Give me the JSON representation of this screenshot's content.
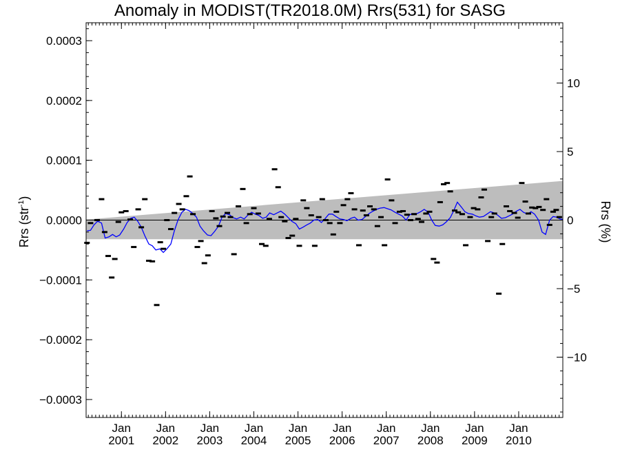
{
  "chart_data": {
    "type": "scatter",
    "title": "Anomaly in MODIST(TR2018.0M) Rrs(531) for SASG",
    "ylabel_left": "Rrs (str",
    "ylabel_left_sup": "-1",
    "ylabel_left_tail": ")",
    "ylabel_right": "Rrs (%)",
    "xlim": [
      2000.2,
      2011.0
    ],
    "ylim": [
      -0.00033,
      0.00033
    ],
    "y2lim": [
      -14.4,
      14.4
    ],
    "left_ticks": [
      {
        "v": 0.0003,
        "label": "0.0003"
      },
      {
        "v": 0.0002,
        "label": "0.0002"
      },
      {
        "v": 0.0001,
        "label": "0.0001"
      },
      {
        "v": 0.0,
        "label": "0.0000"
      },
      {
        "v": -0.0001,
        "label": "−0.0001"
      },
      {
        "v": -0.0002,
        "label": "−0.0002"
      },
      {
        "v": -0.0003,
        "label": "−0.0003"
      }
    ],
    "right_ticks": [
      {
        "v": 10,
        "label": "10"
      },
      {
        "v": 5,
        "label": "5"
      },
      {
        "v": 0,
        "label": "0"
      },
      {
        "v": -5,
        "label": "−5"
      },
      {
        "v": -10,
        "label": "−10"
      }
    ],
    "x_ticks": [
      {
        "v": 2001.0,
        "month": "Jan",
        "year": "2001"
      },
      {
        "v": 2002.0,
        "month": "Jan",
        "year": "2002"
      },
      {
        "v": 2003.0,
        "month": "Jan",
        "year": "2003"
      },
      {
        "v": 2004.0,
        "month": "Jan",
        "year": "2004"
      },
      {
        "v": 2005.0,
        "month": "Jan",
        "year": "2005"
      },
      {
        "v": 2006.0,
        "month": "Jan",
        "year": "2006"
      },
      {
        "v": 2007.0,
        "month": "Jan",
        "year": "2007"
      },
      {
        "v": 2008.0,
        "month": "Jan",
        "year": "2008"
      },
      {
        "v": 2009.0,
        "month": "Jan",
        "year": "2009"
      },
      {
        "v": 2010.0,
        "month": "Jan",
        "year": "2010"
      }
    ],
    "band": {
      "x": [
        2000.2,
        2011.0
      ],
      "upper": [
        1e-06,
        6.55e-05
      ],
      "lower": [
        -3.2e-05,
        -3.2e-05
      ],
      "color": "#bdbdbd"
    },
    "zero_line": 0.0,
    "series": [
      {
        "kind": "points",
        "color": "#000000",
        "points": [
          [
            2000.22,
            -3.8e-05
          ],
          [
            2000.3,
            -5e-06
          ],
          [
            2000.45,
            0.0
          ],
          [
            2000.55,
            3.5e-05
          ],
          [
            2000.62,
            -2e-05
          ],
          [
            2000.7,
            -6e-05
          ],
          [
            2000.78,
            -9.6e-05
          ],
          [
            2000.85,
            -6.5e-05
          ],
          [
            2000.93,
            -3e-06
          ],
          [
            2001.0,
            1.3e-05
          ],
          [
            2001.1,
            1.5e-05
          ],
          [
            2001.2,
            1e-06
          ],
          [
            2001.28,
            -4.5e-05
          ],
          [
            2001.38,
            1.8e-05
          ],
          [
            2001.45,
            -1.2e-05
          ],
          [
            2001.53,
            3.5e-05
          ],
          [
            2001.62,
            -6.8e-05
          ],
          [
            2001.7,
            -6.9e-05
          ],
          [
            2001.8,
            -0.000142
          ],
          [
            2001.88,
            -3.7e-05
          ],
          [
            2001.95,
            -4.8e-05
          ],
          [
            2002.03,
            0.0
          ],
          [
            2002.12,
            -1.5e-05
          ],
          [
            2002.2,
            1.2e-05
          ],
          [
            2002.3,
            2.7e-05
          ],
          [
            2002.38,
            1.8e-05
          ],
          [
            2002.47,
            4e-05
          ],
          [
            2002.55,
            7.3e-05
          ],
          [
            2002.62,
            1e-05
          ],
          [
            2002.72,
            -4.5e-05
          ],
          [
            2002.8,
            -3.5e-05
          ],
          [
            2002.88,
            -7.2e-05
          ],
          [
            2002.96,
            -5.9e-05
          ],
          [
            2003.05,
            1.5e-05
          ],
          [
            2003.14,
            3e-06
          ],
          [
            2003.22,
            -1e-05
          ],
          [
            2003.3,
            6e-06
          ],
          [
            2003.4,
            1.2e-05
          ],
          [
            2003.47,
            5e-06
          ],
          [
            2003.55,
            -5.7e-05
          ],
          [
            2003.65,
            2.3e-05
          ],
          [
            2003.75,
            5.2e-05
          ],
          [
            2003.83,
            -5e-06
          ],
          [
            2003.91,
            1e-05
          ],
          [
            2004.0,
            2e-05
          ],
          [
            2004.1,
            1.1e-05
          ],
          [
            2004.18,
            -4e-05
          ],
          [
            2004.27,
            -4.3e-05
          ],
          [
            2004.35,
            2e-06
          ],
          [
            2004.47,
            8.5e-05
          ],
          [
            2004.55,
            5.5e-05
          ],
          [
            2004.62,
            5e-06
          ],
          [
            2004.7,
            -2e-06
          ],
          [
            2004.78,
            -3e-05
          ],
          [
            2004.87,
            -2.6e-05
          ],
          [
            2004.95,
            2e-06
          ],
          [
            2005.03,
            -4.3e-05
          ],
          [
            2005.12,
            3.3e-05
          ],
          [
            2005.2,
            2e-05
          ],
          [
            2005.3,
            8e-06
          ],
          [
            2005.38,
            -4.3e-05
          ],
          [
            2005.47,
            5e-06
          ],
          [
            2005.55,
            3.5e-05
          ],
          [
            2005.63,
            0.0
          ],
          [
            2005.72,
            -5e-06
          ],
          [
            2005.8,
            -2.4e-05
          ],
          [
            2005.87,
            1.4e-05
          ],
          [
            2005.95,
            -5e-06
          ],
          [
            2006.03,
            2.5e-05
          ],
          [
            2006.12,
            3.5e-05
          ],
          [
            2006.2,
            4.5e-05
          ],
          [
            2006.28,
            1.8e-05
          ],
          [
            2006.38,
            -4.2e-05
          ],
          [
            2006.47,
            1.6e-05
          ],
          [
            2006.55,
            8e-06
          ],
          [
            2006.63,
            2.3e-05
          ],
          [
            2006.72,
            1.8e-05
          ],
          [
            2006.8,
            -1e-05
          ],
          [
            2006.88,
            5e-06
          ],
          [
            2006.96,
            -4.2e-05
          ],
          [
            2007.03,
            6.8e-05
          ],
          [
            2007.12,
            3.3e-05
          ],
          [
            2007.2,
            -5e-06
          ],
          [
            2007.3,
            1.4e-05
          ],
          [
            2007.38,
            1.5e-05
          ],
          [
            2007.47,
            9e-06
          ],
          [
            2007.55,
            0.0
          ],
          [
            2007.63,
            1e-05
          ],
          [
            2007.72,
            2e-06
          ],
          [
            2007.8,
            -3e-06
          ],
          [
            2007.9,
            1.1e-05
          ],
          [
            2007.98,
            1.4e-05
          ],
          [
            2008.07,
            -6.5e-05
          ],
          [
            2008.15,
            -7.1e-05
          ],
          [
            2008.22,
            3e-05
          ],
          [
            2008.3,
            6e-05
          ],
          [
            2008.38,
            6.2e-05
          ],
          [
            2008.45,
            4.8e-05
          ],
          [
            2008.55,
            1.6e-05
          ],
          [
            2008.63,
            1.3e-05
          ],
          [
            2008.72,
            1e-05
          ],
          [
            2008.8,
            -4.2e-05
          ],
          [
            2008.9,
            5e-06
          ],
          [
            2008.98,
            2e-05
          ],
          [
            2009.07,
            1.8e-05
          ],
          [
            2009.15,
            3.8e-05
          ],
          [
            2009.22,
            5.1e-05
          ],
          [
            2009.3,
            -3.5e-05
          ],
          [
            2009.38,
            5e-06
          ],
          [
            2009.45,
            1.1e-05
          ],
          [
            2009.55,
            -0.000123
          ],
          [
            2009.63,
            -4e-05
          ],
          [
            2009.72,
            2.3e-05
          ],
          [
            2009.8,
            1.5e-05
          ],
          [
            2009.9,
            1.2e-05
          ],
          [
            2009.98,
            4e-06
          ],
          [
            2010.07,
            6.2e-05
          ],
          [
            2010.15,
            3.1e-05
          ],
          [
            2010.22,
            1.1e-05
          ],
          [
            2010.3,
            2.1e-05
          ],
          [
            2010.38,
            2e-05
          ],
          [
            2010.46,
            2.2e-05
          ],
          [
            2010.55,
            1.7e-05
          ],
          [
            2010.63,
            3.5e-05
          ],
          [
            2010.7,
            -8e-06
          ],
          [
            2010.78,
            1.4e-05
          ],
          [
            2010.85,
            1.7e-05
          ],
          [
            2010.92,
            5e-06
          ]
        ]
      },
      {
        "kind": "line",
        "color": "#0000ff",
        "points": [
          [
            2000.22,
            -1.8e-05
          ],
          [
            2000.3,
            -1.7e-05
          ],
          [
            2000.38,
            -8e-06
          ],
          [
            2000.46,
            -2e-06
          ],
          [
            2000.55,
            -5e-06
          ],
          [
            2000.63,
            -3e-05
          ],
          [
            2000.72,
            -2.8e-05
          ],
          [
            2000.8,
            -2.4e-05
          ],
          [
            2000.88,
            -2.8e-05
          ],
          [
            2000.96,
            -2.5e-05
          ],
          [
            2001.05,
            -1.5e-05
          ],
          [
            2001.13,
            -4e-06
          ],
          [
            2001.21,
            3e-06
          ],
          [
            2001.29,
            5e-06
          ],
          [
            2001.37,
            -2e-06
          ],
          [
            2001.45,
            -1.2e-05
          ],
          [
            2001.53,
            -2.6e-05
          ],
          [
            2001.62,
            -4e-05
          ],
          [
            2001.7,
            -4.3e-05
          ],
          [
            2001.78,
            -5e-05
          ],
          [
            2001.87,
            -4.8e-05
          ],
          [
            2001.95,
            -5.4e-05
          ],
          [
            2002.03,
            -4.8e-05
          ],
          [
            2002.12,
            -4e-05
          ],
          [
            2002.2,
            -1.8e-05
          ],
          [
            2002.28,
            0.0
          ],
          [
            2002.37,
            1.3e-05
          ],
          [
            2002.45,
            1.8e-05
          ],
          [
            2002.53,
            1.6e-05
          ],
          [
            2002.62,
            1.1e-05
          ],
          [
            2002.7,
            5e-06
          ],
          [
            2002.78,
            -1e-05
          ],
          [
            2002.86,
            -1.8e-05
          ],
          [
            2002.95,
            -2.5e-05
          ],
          [
            2003.03,
            -2.6e-05
          ],
          [
            2003.11,
            -1.9e-05
          ],
          [
            2003.2,
            -1e-05
          ],
          [
            2003.28,
            5e-06
          ],
          [
            2003.36,
            1.1e-05
          ],
          [
            2003.45,
            9e-06
          ],
          [
            2003.53,
            4e-06
          ],
          [
            2003.61,
            2e-06
          ],
          [
            2003.7,
            5e-06
          ],
          [
            2003.78,
            2e-06
          ],
          [
            2003.86,
            8e-06
          ],
          [
            2003.95,
            1.3e-05
          ],
          [
            2004.03,
            1e-05
          ],
          [
            2004.11,
            8e-06
          ],
          [
            2004.2,
            3e-06
          ],
          [
            2004.28,
            5e-06
          ],
          [
            2004.36,
            1.2e-05
          ],
          [
            2004.45,
            9e-06
          ],
          [
            2004.53,
            1.2e-05
          ],
          [
            2004.61,
            1.5e-05
          ],
          [
            2004.7,
            1e-05
          ],
          [
            2004.78,
            4e-06
          ],
          [
            2004.86,
            -2e-06
          ],
          [
            2004.95,
            -6e-06
          ],
          [
            2005.03,
            -1.5e-05
          ],
          [
            2005.11,
            -1.2e-05
          ],
          [
            2005.2,
            -8e-06
          ],
          [
            2005.28,
            -5e-06
          ],
          [
            2005.36,
            0.0
          ],
          [
            2005.45,
            1e-06
          ],
          [
            2005.53,
            -4e-06
          ],
          [
            2005.61,
            2e-06
          ],
          [
            2005.7,
            1e-05
          ],
          [
            2005.78,
            1e-05
          ],
          [
            2005.86,
            6e-06
          ],
          [
            2005.95,
            2e-06
          ],
          [
            2006.03,
            1e-06
          ],
          [
            2006.11,
            -1e-06
          ],
          [
            2006.2,
            3e-06
          ],
          [
            2006.28,
            5e-06
          ],
          [
            2006.36,
            0.0
          ],
          [
            2006.45,
            1e-06
          ],
          [
            2006.53,
            6e-06
          ],
          [
            2006.61,
            1.1e-05
          ],
          [
            2006.7,
            1.5e-05
          ],
          [
            2006.78,
            1.8e-05
          ],
          [
            2006.86,
            2e-05
          ],
          [
            2006.95,
            2.1e-05
          ],
          [
            2007.03,
            1.9e-05
          ],
          [
            2007.11,
            1.7e-05
          ],
          [
            2007.2,
            1.3e-05
          ],
          [
            2007.28,
            1e-05
          ],
          [
            2007.36,
            7e-06
          ],
          [
            2007.45,
            0.0
          ],
          [
            2007.53,
            9e-06
          ],
          [
            2007.61,
            1.1e-05
          ],
          [
            2007.7,
            1.1e-05
          ],
          [
            2007.78,
            1.4e-05
          ],
          [
            2007.86,
            1.8e-05
          ],
          [
            2007.95,
            1.3e-05
          ],
          [
            2008.03,
            0.0
          ],
          [
            2008.11,
            -9e-06
          ],
          [
            2008.2,
            -1e-05
          ],
          [
            2008.28,
            -8e-06
          ],
          [
            2008.36,
            -3e-06
          ],
          [
            2008.45,
            4e-06
          ],
          [
            2008.53,
            1.6e-05
          ],
          [
            2008.61,
            3e-05
          ],
          [
            2008.7,
            2.2e-05
          ],
          [
            2008.78,
            1.4e-05
          ],
          [
            2008.86,
            1.1e-05
          ],
          [
            2008.95,
            1e-05
          ],
          [
            2009.03,
            7e-06
          ],
          [
            2009.11,
            5e-06
          ],
          [
            2009.2,
            6e-06
          ],
          [
            2009.28,
            1e-05
          ],
          [
            2009.36,
            1.4e-05
          ],
          [
            2009.45,
            1.2e-05
          ],
          [
            2009.53,
            8e-06
          ],
          [
            2009.61,
            3e-06
          ],
          [
            2009.7,
            4e-06
          ],
          [
            2009.78,
            7e-06
          ],
          [
            2009.86,
            1e-05
          ],
          [
            2009.95,
            1.5e-05
          ],
          [
            2010.03,
            1.8e-05
          ],
          [
            2010.11,
            1.3e-05
          ],
          [
            2010.2,
            1e-05
          ],
          [
            2010.28,
            1.4e-05
          ],
          [
            2010.36,
            1e-05
          ],
          [
            2010.45,
            0.0
          ],
          [
            2010.53,
            -2e-05
          ],
          [
            2010.61,
            -2.4e-05
          ],
          [
            2010.7,
            0.0
          ],
          [
            2010.78,
            6e-06
          ],
          [
            2010.86,
            5e-06
          ],
          [
            2010.93,
            2e-06
          ],
          [
            2011.0,
            1e-06
          ]
        ]
      }
    ]
  }
}
